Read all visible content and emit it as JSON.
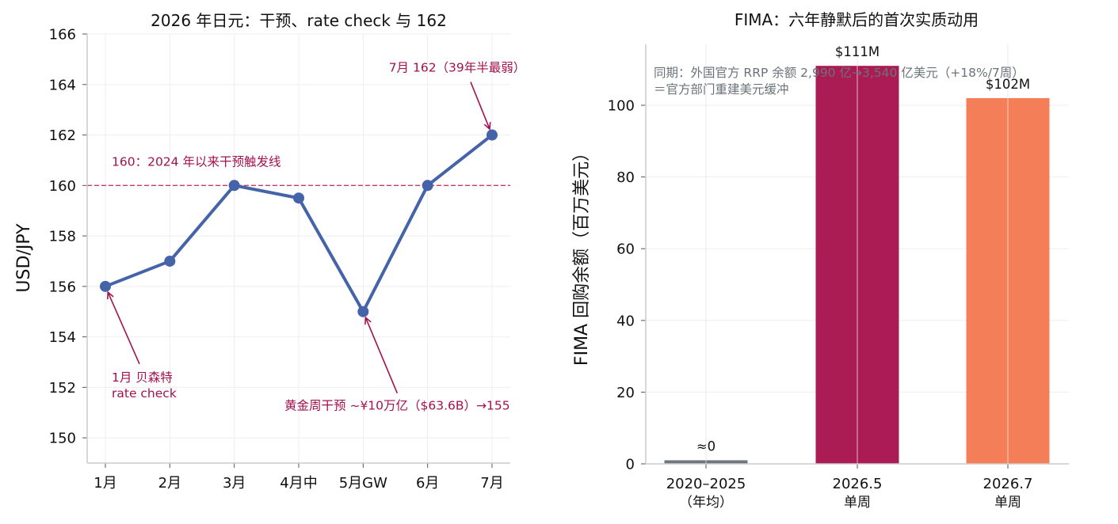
{
  "colors": {
    "line": "#4563a8",
    "annotation": "#a3114f",
    "threshold": "#c43a6e",
    "bars": [
      "#6e777b",
      "#ab1c54",
      "#f47e58"
    ],
    "grid": "#eeeeee",
    "axis": "#cccccc",
    "note": "#6a7377"
  },
  "chart_data": [
    {
      "type": "line",
      "title": "2026 年日元：干预、rate check 与 162",
      "xlabel": "",
      "ylabel": "USD/JPY",
      "categories": [
        "1月",
        "2月",
        "3月",
        "4月中",
        "5月GW",
        "6月",
        "7月"
      ],
      "series": [
        {
          "values": [
            156,
            157,
            160,
            159.5,
            155,
            160,
            162
          ]
        }
      ],
      "ylim": [
        149,
        166
      ],
      "yticks": [
        150,
        152,
        154,
        156,
        158,
        160,
        162,
        164,
        166
      ],
      "grid": true,
      "reference_line": {
        "y": 160,
        "label": "160：2024 年以来干预触发线"
      },
      "annotations": [
        {
          "point_index": 0,
          "lines": [
            "1月 贝森特",
            "rate check"
          ]
        },
        {
          "point_index": 4,
          "lines": [
            "黄金周干预 ~¥10万亿（$63.6B）→155"
          ]
        },
        {
          "point_index": 6,
          "lines": [
            "7月 162（39年半最弱）"
          ]
        }
      ]
    },
    {
      "type": "bar",
      "title": "FIMA：六年静默后的首次实质动用",
      "xlabel": "",
      "ylabel": "FIMA 回购余额（百万美元）",
      "categories": [
        "2020–2025",
        "2026.5",
        "2026.7"
      ],
      "subcategories": [
        "（年均）",
        "单周",
        "单周"
      ],
      "values": [
        1,
        111,
        102
      ],
      "value_labels": [
        "≈0",
        "$111M",
        "$102M"
      ],
      "ylim": [
        0,
        117
      ],
      "yticks": [
        0,
        20,
        40,
        60,
        80,
        100
      ],
      "grid": true,
      "note_lines": [
        "同期：外国官方 RRP 余额 2,990 亿→3,540 亿美元（+18%/7周）",
        "＝官方部门重建美元缓冲"
      ]
    }
  ]
}
